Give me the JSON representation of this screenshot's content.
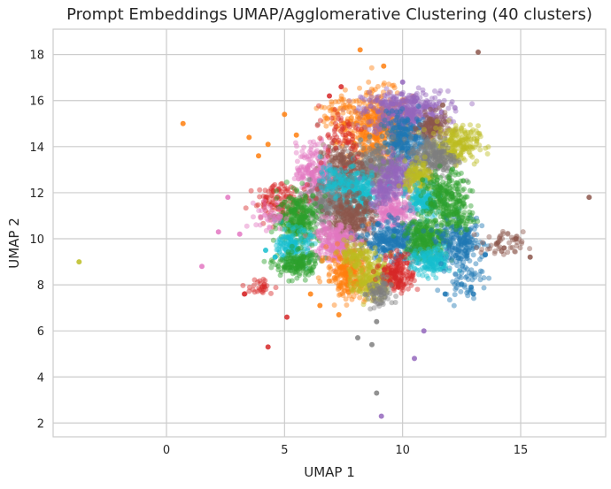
{
  "chart_data": {
    "type": "scatter",
    "title": "Prompt Embeddings UMAP/Agglomerative Clustering (40 clusters)",
    "xlabel": "UMAP 1",
    "ylabel": "UMAP 2",
    "xlim": [
      -4.8,
      18.6
    ],
    "ylim": [
      1.4,
      19.1
    ],
    "xticks": [
      0,
      5,
      10,
      15
    ],
    "yticks": [
      2,
      4,
      6,
      8,
      10,
      12,
      14,
      16,
      18
    ],
    "grid": true,
    "legend": "none",
    "n_clusters": 40,
    "palette": [
      "#1f77b4",
      "#ff7f0e",
      "#2ca02c",
      "#d62728",
      "#9467bd",
      "#8c564b",
      "#e377c2",
      "#7f7f7f",
      "#bcbd22",
      "#17becf"
    ],
    "clusters": [
      {
        "color": "#ff7f0e",
        "center": [
          9.0,
          14.8
        ],
        "spread": [
          0.7,
          0.8
        ],
        "n": 500
      },
      {
        "color": "#9467bd",
        "center": [
          10.1,
          15.5
        ],
        "spread": [
          0.9,
          0.45
        ],
        "n": 450
      },
      {
        "color": "#1f77b4",
        "center": [
          10.1,
          14.2
        ],
        "spread": [
          0.5,
          0.6
        ],
        "n": 300
      },
      {
        "color": "#8c564b",
        "center": [
          11.3,
          14.8
        ],
        "spread": [
          0.3,
          0.3
        ],
        "n": 120
      },
      {
        "color": "#bcbd22",
        "center": [
          12.2,
          14.1
        ],
        "spread": [
          0.5,
          0.4
        ],
        "n": 220
      },
      {
        "color": "#7f7f7f",
        "center": [
          11.3,
          13.5
        ],
        "spread": [
          0.5,
          0.45
        ],
        "n": 250
      },
      {
        "color": "#7f7f7f",
        "center": [
          8.8,
          13.1
        ],
        "spread": [
          0.45,
          0.45
        ],
        "n": 220
      },
      {
        "color": "#8c564b",
        "center": [
          7.4,
          13.0
        ],
        "spread": [
          0.5,
          0.55
        ],
        "n": 250
      },
      {
        "color": "#e377c2",
        "center": [
          6.3,
          12.9
        ],
        "spread": [
          0.4,
          0.6
        ],
        "n": 200
      },
      {
        "color": "#9467bd",
        "center": [
          9.7,
          12.7
        ],
        "spread": [
          0.35,
          0.5
        ],
        "n": 180
      },
      {
        "color": "#bcbd22",
        "center": [
          10.7,
          12.6
        ],
        "spread": [
          0.3,
          0.35
        ],
        "n": 140
      },
      {
        "color": "#17becf",
        "center": [
          8.1,
          12.0
        ],
        "spread": [
          0.45,
          0.45
        ],
        "n": 230
      },
      {
        "color": "#7f7f7f",
        "center": [
          6.8,
          11.6
        ],
        "spread": [
          0.45,
          0.5
        ],
        "n": 230
      },
      {
        "color": "#17becf",
        "center": [
          10.9,
          11.6
        ],
        "spread": [
          0.35,
          0.35
        ],
        "n": 160
      },
      {
        "color": "#2ca02c",
        "center": [
          11.8,
          11.8
        ],
        "spread": [
          0.45,
          0.55
        ],
        "n": 220
      },
      {
        "color": "#d62728",
        "center": [
          4.9,
          11.6
        ],
        "spread": [
          0.6,
          0.4
        ],
        "n": 130
      },
      {
        "color": "#e377c2",
        "center": [
          9.6,
          11.2
        ],
        "spread": [
          0.4,
          0.4
        ],
        "n": 170
      },
      {
        "color": "#8c564b",
        "center": [
          7.8,
          10.8
        ],
        "spread": [
          0.5,
          0.55
        ],
        "n": 320
      },
      {
        "color": "#2ca02c",
        "center": [
          5.6,
          10.9
        ],
        "spread": [
          0.45,
          0.55
        ],
        "n": 280
      },
      {
        "color": "#1f77b4",
        "center": [
          9.6,
          9.9
        ],
        "spread": [
          0.6,
          0.4
        ],
        "n": 300
      },
      {
        "color": "#2ca02c",
        "center": [
          11.0,
          10.0
        ],
        "spread": [
          0.45,
          0.45
        ],
        "n": 280
      },
      {
        "color": "#1f77b4",
        "center": [
          12.4,
          9.8
        ],
        "spread": [
          0.5,
          0.45
        ],
        "n": 200
      },
      {
        "color": "#e377c2",
        "center": [
          7.1,
          9.9
        ],
        "spread": [
          0.45,
          0.45
        ],
        "n": 230
      },
      {
        "color": "#17becf",
        "center": [
          5.4,
          9.7
        ],
        "spread": [
          0.35,
          0.35
        ],
        "n": 150
      },
      {
        "color": "#2ca02c",
        "center": [
          5.5,
          8.9
        ],
        "spread": [
          0.45,
          0.3
        ],
        "n": 170
      },
      {
        "color": "#ff7f0e",
        "center": [
          7.7,
          8.5
        ],
        "spread": [
          0.45,
          0.5
        ],
        "n": 260
      },
      {
        "color": "#bcbd22",
        "center": [
          8.7,
          8.3
        ],
        "spread": [
          0.4,
          0.45
        ],
        "n": 200
      },
      {
        "color": "#d62728",
        "center": [
          9.8,
          8.5
        ],
        "spread": [
          0.35,
          0.4
        ],
        "n": 170
      },
      {
        "color": "#17becf",
        "center": [
          11.2,
          9.0
        ],
        "spread": [
          0.4,
          0.3
        ],
        "n": 150
      },
      {
        "color": "#7f7f7f",
        "center": [
          9.0,
          7.6
        ],
        "spread": [
          0.25,
          0.35
        ],
        "n": 80
      },
      {
        "color": "#8c564b",
        "center": [
          14.2,
          9.7
        ],
        "spread": [
          0.45,
          0.3
        ],
        "n": 50
      },
      {
        "color": "#d62728",
        "center": [
          3.9,
          7.9
        ],
        "spread": [
          0.35,
          0.2
        ],
        "n": 30
      },
      {
        "color": "#e377c2",
        "center": [
          4.4,
          11.0
        ],
        "spread": [
          0.3,
          0.3
        ],
        "n": 40
      },
      {
        "color": "#ff7f0e",
        "center": [
          7.4,
          15.4
        ],
        "spread": [
          0.4,
          0.5
        ],
        "n": 60
      },
      {
        "color": "#d62728",
        "center": [
          7.4,
          14.6
        ],
        "spread": [
          0.5,
          0.6
        ],
        "n": 60
      },
      {
        "color": "#9467bd",
        "center": [
          9.2,
          12.0
        ],
        "spread": [
          0.3,
          0.3
        ],
        "n": 80
      },
      {
        "color": "#bcbd22",
        "center": [
          8.0,
          9.3
        ],
        "spread": [
          0.35,
          0.3
        ],
        "n": 90
      },
      {
        "color": "#1f77b4",
        "center": [
          12.6,
          8.3
        ],
        "spread": [
          0.4,
          0.4
        ],
        "n": 60
      },
      {
        "color": "#2ca02c",
        "center": [
          12.3,
          11.0
        ],
        "spread": [
          0.35,
          0.4
        ],
        "n": 80
      },
      {
        "color": "#17becf",
        "center": [
          7.1,
          12.5
        ],
        "spread": [
          0.3,
          0.3
        ],
        "n": 70
      }
    ],
    "outliers": [
      {
        "x": 8.2,
        "y": 18.2,
        "color": "#ff7f0e"
      },
      {
        "x": 9.2,
        "y": 17.5,
        "color": "#ff7f0e"
      },
      {
        "x": 13.2,
        "y": 18.1,
        "color": "#8c564b"
      },
      {
        "x": 10.0,
        "y": 16.8,
        "color": "#9467bd"
      },
      {
        "x": 0.7,
        "y": 15.0,
        "color": "#ff7f0e"
      },
      {
        "x": 5.0,
        "y": 15.4,
        "color": "#ff7f0e"
      },
      {
        "x": 5.5,
        "y": 14.5,
        "color": "#ff7f0e"
      },
      {
        "x": 4.3,
        "y": 14.1,
        "color": "#ff7f0e"
      },
      {
        "x": 3.9,
        "y": 13.6,
        "color": "#ff7f0e"
      },
      {
        "x": 3.5,
        "y": 14.4,
        "color": "#ff7f0e"
      },
      {
        "x": 6.9,
        "y": 16.2,
        "color": "#d62728"
      },
      {
        "x": 7.4,
        "y": 16.6,
        "color": "#d62728"
      },
      {
        "x": 2.6,
        "y": 11.8,
        "color": "#e377c2"
      },
      {
        "x": 2.2,
        "y": 10.3,
        "color": "#e377c2"
      },
      {
        "x": 3.1,
        "y": 10.2,
        "color": "#e377c2"
      },
      {
        "x": 1.5,
        "y": 8.8,
        "color": "#e377c2"
      },
      {
        "x": -3.7,
        "y": 9.0,
        "color": "#bcbd22"
      },
      {
        "x": 3.3,
        "y": 7.6,
        "color": "#d62728"
      },
      {
        "x": 4.3,
        "y": 5.3,
        "color": "#d62728"
      },
      {
        "x": 5.1,
        "y": 6.6,
        "color": "#d62728"
      },
      {
        "x": 6.1,
        "y": 7.6,
        "color": "#ff7f0e"
      },
      {
        "x": 6.5,
        "y": 7.1,
        "color": "#ff7f0e"
      },
      {
        "x": 7.3,
        "y": 6.7,
        "color": "#ff7f0e"
      },
      {
        "x": 8.1,
        "y": 5.7,
        "color": "#7f7f7f"
      },
      {
        "x": 8.7,
        "y": 5.4,
        "color": "#7f7f7f"
      },
      {
        "x": 8.9,
        "y": 6.4,
        "color": "#7f7f7f"
      },
      {
        "x": 9.1,
        "y": 2.3,
        "color": "#9467bd"
      },
      {
        "x": 8.9,
        "y": 3.3,
        "color": "#7f7f7f"
      },
      {
        "x": 10.5,
        "y": 4.8,
        "color": "#9467bd"
      },
      {
        "x": 10.9,
        "y": 6.0,
        "color": "#9467bd"
      },
      {
        "x": 17.9,
        "y": 11.8,
        "color": "#8c564b"
      },
      {
        "x": 15.4,
        "y": 9.2,
        "color": "#8c564b"
      },
      {
        "x": 14.8,
        "y": 10.0,
        "color": "#8c564b"
      },
      {
        "x": 14.3,
        "y": 9.6,
        "color": "#8c564b"
      },
      {
        "x": 13.0,
        "y": 7.6,
        "color": "#1f77b4"
      },
      {
        "x": 12.9,
        "y": 7.9,
        "color": "#1f77b4"
      },
      {
        "x": 11.8,
        "y": 7.6,
        "color": "#1f77b4"
      },
      {
        "x": 13.5,
        "y": 9.3,
        "color": "#1f77b4"
      },
      {
        "x": 4.6,
        "y": 9.2,
        "color": "#17becf"
      },
      {
        "x": 4.2,
        "y": 9.5,
        "color": "#17becf"
      },
      {
        "x": 10.6,
        "y": 16.1,
        "color": "#9467bd"
      },
      {
        "x": 11.7,
        "y": 15.8,
        "color": "#8c564b"
      }
    ]
  }
}
